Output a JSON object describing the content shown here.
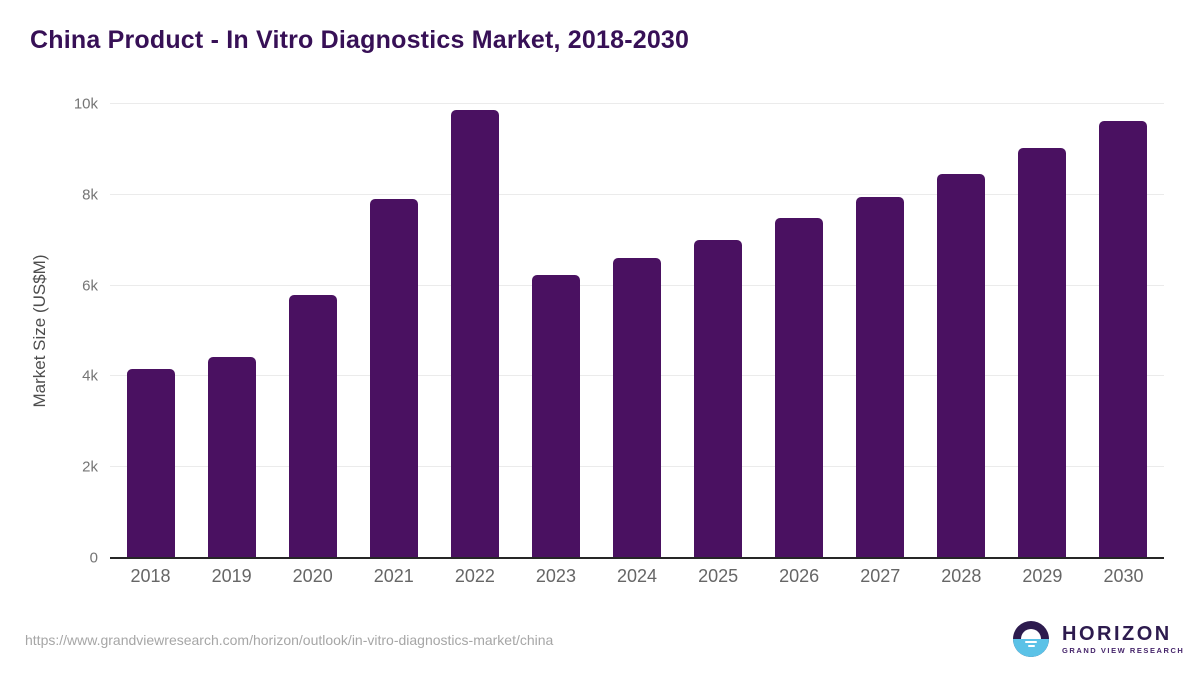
{
  "chart_data": {
    "type": "bar",
    "title": "China Product - In Vitro Diagnostics Market, 2018-2030",
    "categories": [
      "2018",
      "2019",
      "2020",
      "2021",
      "2022",
      "2023",
      "2024",
      "2025",
      "2026",
      "2027",
      "2028",
      "2029",
      "2030"
    ],
    "values": [
      4160,
      4430,
      5790,
      7910,
      9870,
      6230,
      6610,
      7000,
      7490,
      7960,
      8460,
      9030,
      9630
    ],
    "xlabel": "",
    "ylabel": "Market Size (US$M)",
    "ylim": [
      0,
      10000
    ],
    "yticks": [
      {
        "value": 0,
        "label": "0"
      },
      {
        "value": 2000,
        "label": "2k"
      },
      {
        "value": 4000,
        "label": "4k"
      },
      {
        "value": 6000,
        "label": "6k"
      },
      {
        "value": 8000,
        "label": "8k"
      },
      {
        "value": 10000,
        "label": "10k"
      }
    ],
    "grid": true,
    "legend": null,
    "bar_color": "#4a1161"
  },
  "footer": {
    "source_url": "https://www.grandviewresearch.com/horizon/outlook/in-vitro-diagnostics-market/china",
    "logo": {
      "name": "HORIZON",
      "subtitle": "GRAND VIEW RESEARCH"
    }
  },
  "colors": {
    "title": "#371056",
    "bar": "#4a1161",
    "gridline": "#ebebeb",
    "axis_line": "#262626",
    "tick_label": "#757575",
    "logo_dark": "#2d1b4e",
    "logo_blue": "#5bc2e7"
  }
}
